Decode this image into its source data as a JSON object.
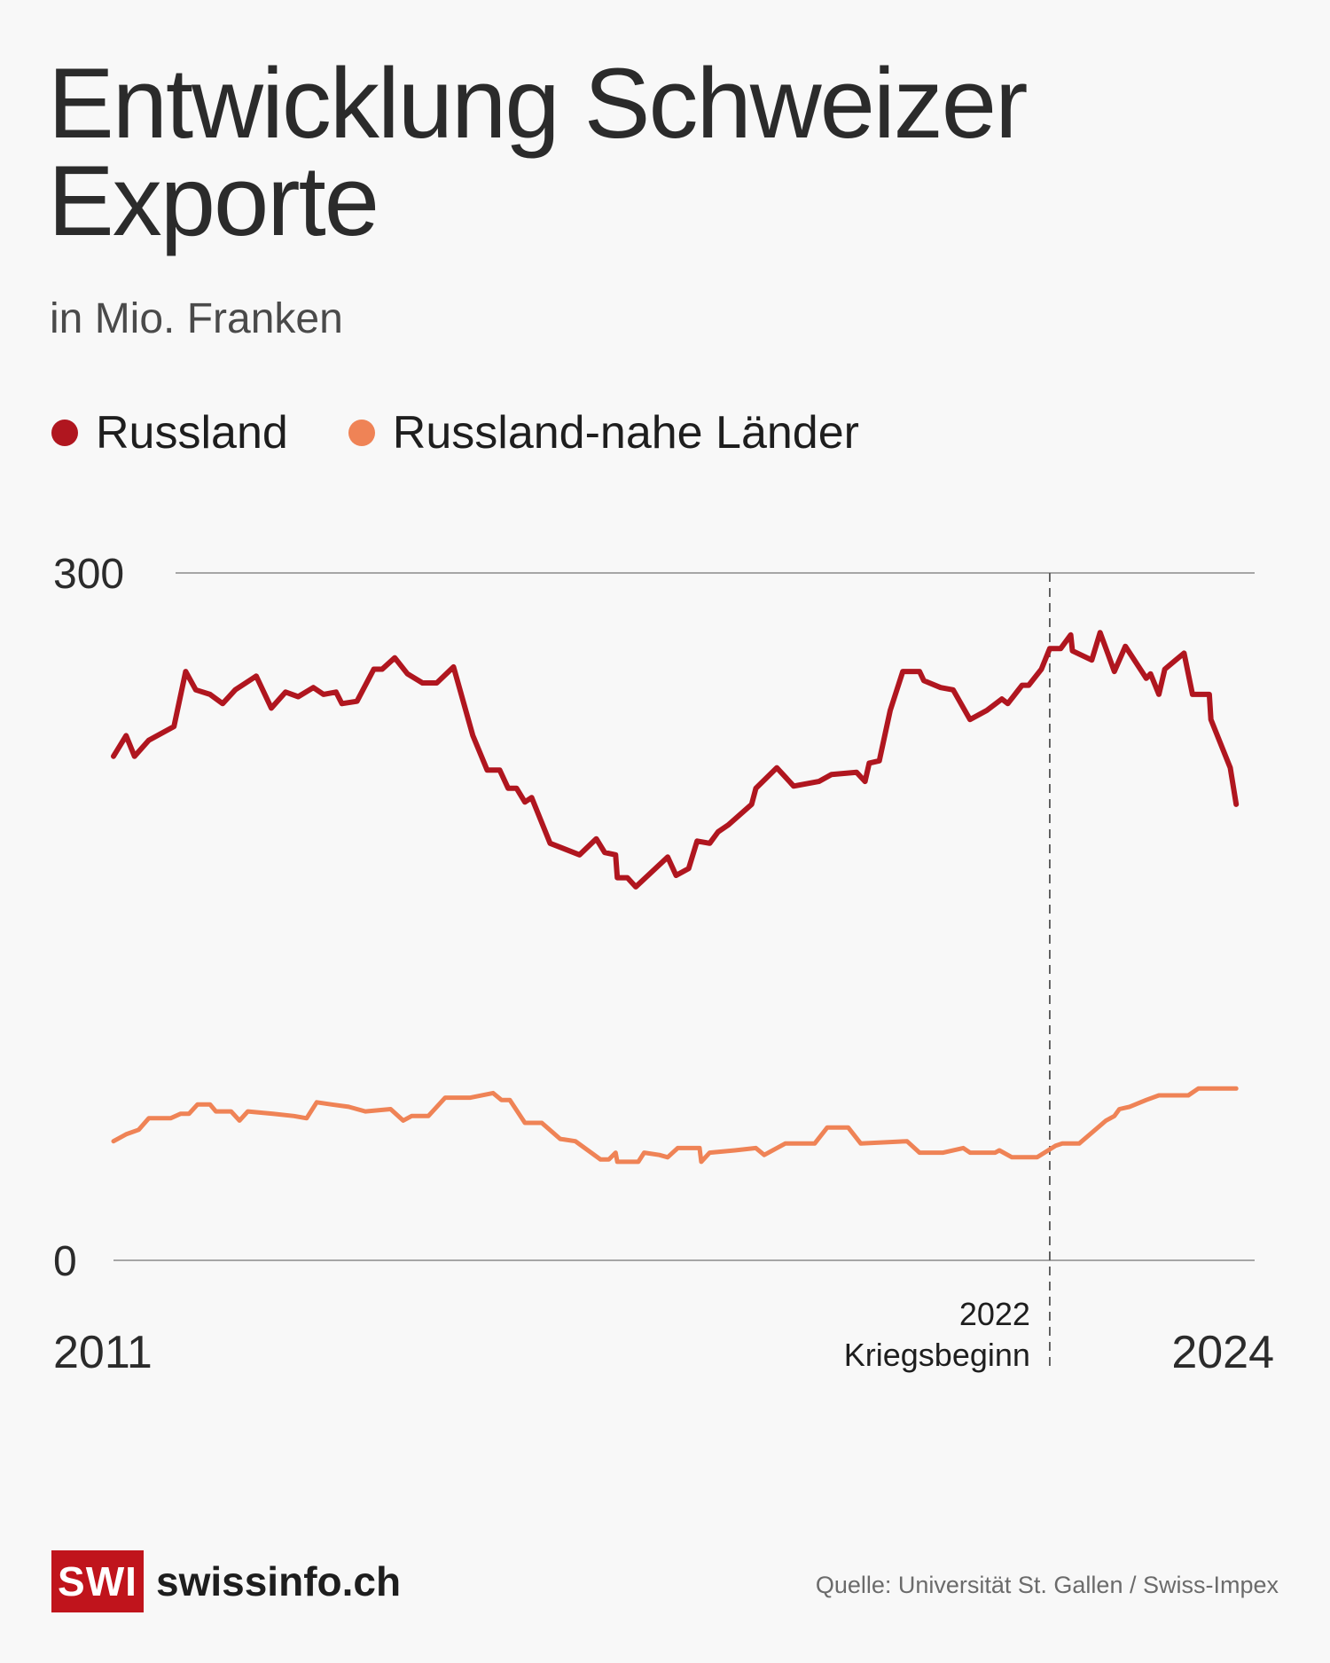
{
  "header": {
    "title": "Entwicklung Schweizer Exporte",
    "subtitle": "in Mio. Franken"
  },
  "legend": [
    {
      "label": "Russland",
      "color": "#b0161f"
    },
    {
      "label": "Russland-nahe Länder",
      "color": "#ef8356"
    }
  ],
  "footer": {
    "logo_text": "SWI",
    "site": "swissinfo.ch",
    "source": "Quelle: Universität St. Gallen / Swiss-Impex"
  },
  "chart_data": {
    "type": "line",
    "title": "Entwicklung Schweizer Exporte",
    "subtitle": "in Mio. Franken",
    "ylabel": "in Mio. Franken",
    "ylim": [
      0,
      300
    ],
    "yticks": [
      "300",
      "0"
    ],
    "xlim": [
      2011.0,
      2024.4
    ],
    "x_tick_labels": [
      "2011",
      "2024"
    ],
    "grid": true,
    "legend_position": "top-left",
    "annotation": {
      "x": 2022.15,
      "year": "2022",
      "label": "Kriegsbeginn"
    },
    "series": [
      {
        "name": "Russland",
        "color": "#b0161f",
        "points": [
          [
            2011.0,
            220
          ],
          [
            2011.15,
            229
          ],
          [
            2011.25,
            220
          ],
          [
            2011.42,
            227
          ],
          [
            2011.72,
            233
          ],
          [
            2011.86,
            257
          ],
          [
            2011.98,
            249
          ],
          [
            2012.15,
            247
          ],
          [
            2012.3,
            243
          ],
          [
            2012.45,
            249
          ],
          [
            2012.7,
            255
          ],
          [
            2012.88,
            241
          ],
          [
            2013.05,
            248
          ],
          [
            2013.2,
            246
          ],
          [
            2013.38,
            250
          ],
          [
            2013.5,
            247
          ],
          [
            2013.65,
            248
          ],
          [
            2013.72,
            243
          ],
          [
            2013.9,
            244
          ],
          [
            2014.1,
            258
          ],
          [
            2014.2,
            258
          ],
          [
            2014.35,
            263
          ],
          [
            2014.5,
            256
          ],
          [
            2014.68,
            252
          ],
          [
            2014.85,
            252
          ],
          [
            2015.05,
            259
          ],
          [
            2015.28,
            229
          ],
          [
            2015.45,
            214
          ],
          [
            2015.6,
            214
          ],
          [
            2015.7,
            206
          ],
          [
            2015.8,
            206
          ],
          [
            2015.9,
            200
          ],
          [
            2015.98,
            202
          ],
          [
            2016.2,
            182
          ],
          [
            2016.55,
            177
          ],
          [
            2016.75,
            184
          ],
          [
            2016.85,
            178
          ],
          [
            2016.98,
            177
          ],
          [
            2017.0,
            167
          ],
          [
            2017.12,
            167
          ],
          [
            2017.22,
            163
          ],
          [
            2017.6,
            176
          ],
          [
            2017.7,
            168
          ],
          [
            2017.85,
            171
          ],
          [
            2017.95,
            183
          ],
          [
            2018.1,
            182
          ],
          [
            2018.2,
            187
          ],
          [
            2018.32,
            190
          ],
          [
            2018.6,
            199
          ],
          [
            2018.65,
            206
          ],
          [
            2018.9,
            215
          ],
          [
            2019.1,
            207
          ],
          [
            2019.4,
            209
          ],
          [
            2019.55,
            212
          ],
          [
            2019.85,
            213
          ],
          [
            2019.95,
            209
          ],
          [
            2020.0,
            217
          ],
          [
            2020.12,
            218
          ],
          [
            2020.25,
            240
          ],
          [
            2020.4,
            257
          ],
          [
            2020.6,
            257
          ],
          [
            2020.65,
            253
          ],
          [
            2020.85,
            250
          ],
          [
            2021.0,
            249
          ],
          [
            2021.2,
            236
          ],
          [
            2021.4,
            240
          ],
          [
            2021.58,
            245
          ],
          [
            2021.65,
            243
          ],
          [
            2021.82,
            251
          ],
          [
            2021.9,
            251
          ],
          [
            2022.05,
            258
          ],
          [
            2022.15,
            267
          ],
          [
            2022.28,
            267
          ],
          [
            2022.4,
            273
          ],
          [
            2022.42,
            266
          ],
          [
            2022.65,
            262
          ],
          [
            2022.75,
            274
          ],
          [
            2022.85,
            264
          ],
          [
            2022.92,
            257
          ],
          [
            2023.05,
            268
          ],
          [
            2023.3,
            254
          ],
          [
            2023.35,
            256
          ],
          [
            2023.45,
            247
          ],
          [
            2023.52,
            258
          ],
          [
            2023.65,
            262
          ],
          [
            2023.75,
            265
          ],
          [
            2023.85,
            247
          ],
          [
            2024.05,
            247
          ],
          [
            2024.07,
            236
          ],
          [
            2024.3,
            215
          ],
          [
            2024.37,
            199
          ]
        ]
      },
      {
        "name": "Russland-nahe Länder",
        "color": "#ef8356",
        "points": [
          [
            2011.0,
            52
          ],
          [
            2011.15,
            55
          ],
          [
            2011.3,
            57
          ],
          [
            2011.42,
            62
          ],
          [
            2011.68,
            62
          ],
          [
            2011.8,
            64
          ],
          [
            2011.9,
            64
          ],
          [
            2012.0,
            68
          ],
          [
            2012.15,
            68
          ],
          [
            2012.22,
            65
          ],
          [
            2012.4,
            65
          ],
          [
            2012.5,
            61
          ],
          [
            2012.6,
            65
          ],
          [
            2012.9,
            64
          ],
          [
            2013.15,
            63
          ],
          [
            2013.3,
            62
          ],
          [
            2013.42,
            69
          ],
          [
            2013.6,
            68
          ],
          [
            2013.8,
            67
          ],
          [
            2014.0,
            65
          ],
          [
            2014.3,
            66
          ],
          [
            2014.45,
            61
          ],
          [
            2014.55,
            63
          ],
          [
            2014.75,
            63
          ],
          [
            2014.95,
            71
          ],
          [
            2015.25,
            71
          ],
          [
            2015.52,
            73
          ],
          [
            2015.62,
            70
          ],
          [
            2015.72,
            70
          ],
          [
            2015.9,
            60
          ],
          [
            2016.1,
            60
          ],
          [
            2016.32,
            53
          ],
          [
            2016.5,
            52
          ],
          [
            2016.8,
            44
          ],
          [
            2016.9,
            44
          ],
          [
            2016.98,
            47
          ],
          [
            2017.0,
            43
          ],
          [
            2017.25,
            43
          ],
          [
            2017.32,
            47
          ],
          [
            2017.5,
            46
          ],
          [
            2017.6,
            45
          ],
          [
            2017.72,
            49
          ],
          [
            2017.98,
            49
          ],
          [
            2018.0,
            43
          ],
          [
            2018.1,
            47
          ],
          [
            2018.4,
            48
          ],
          [
            2018.65,
            49
          ],
          [
            2018.75,
            46
          ],
          [
            2019.0,
            51
          ],
          [
            2019.35,
            51
          ],
          [
            2019.5,
            58
          ],
          [
            2019.75,
            58
          ],
          [
            2019.9,
            51
          ],
          [
            2020.45,
            52
          ],
          [
            2020.6,
            47
          ],
          [
            2020.88,
            47
          ],
          [
            2021.12,
            49
          ],
          [
            2021.2,
            47
          ],
          [
            2021.5,
            47
          ],
          [
            2021.55,
            48
          ],
          [
            2021.7,
            45
          ],
          [
            2021.85,
            45
          ],
          [
            2022.0,
            45
          ],
          [
            2022.22,
            50
          ],
          [
            2022.3,
            51
          ],
          [
            2022.5,
            51
          ],
          [
            2022.82,
            61
          ],
          [
            2022.92,
            63
          ],
          [
            2022.98,
            66
          ],
          [
            2023.1,
            67
          ],
          [
            2023.3,
            70
          ],
          [
            2023.45,
            72
          ],
          [
            2023.8,
            72
          ],
          [
            2023.92,
            75
          ],
          [
            2024.2,
            75
          ],
          [
            2024.37,
            75
          ]
        ]
      }
    ]
  }
}
